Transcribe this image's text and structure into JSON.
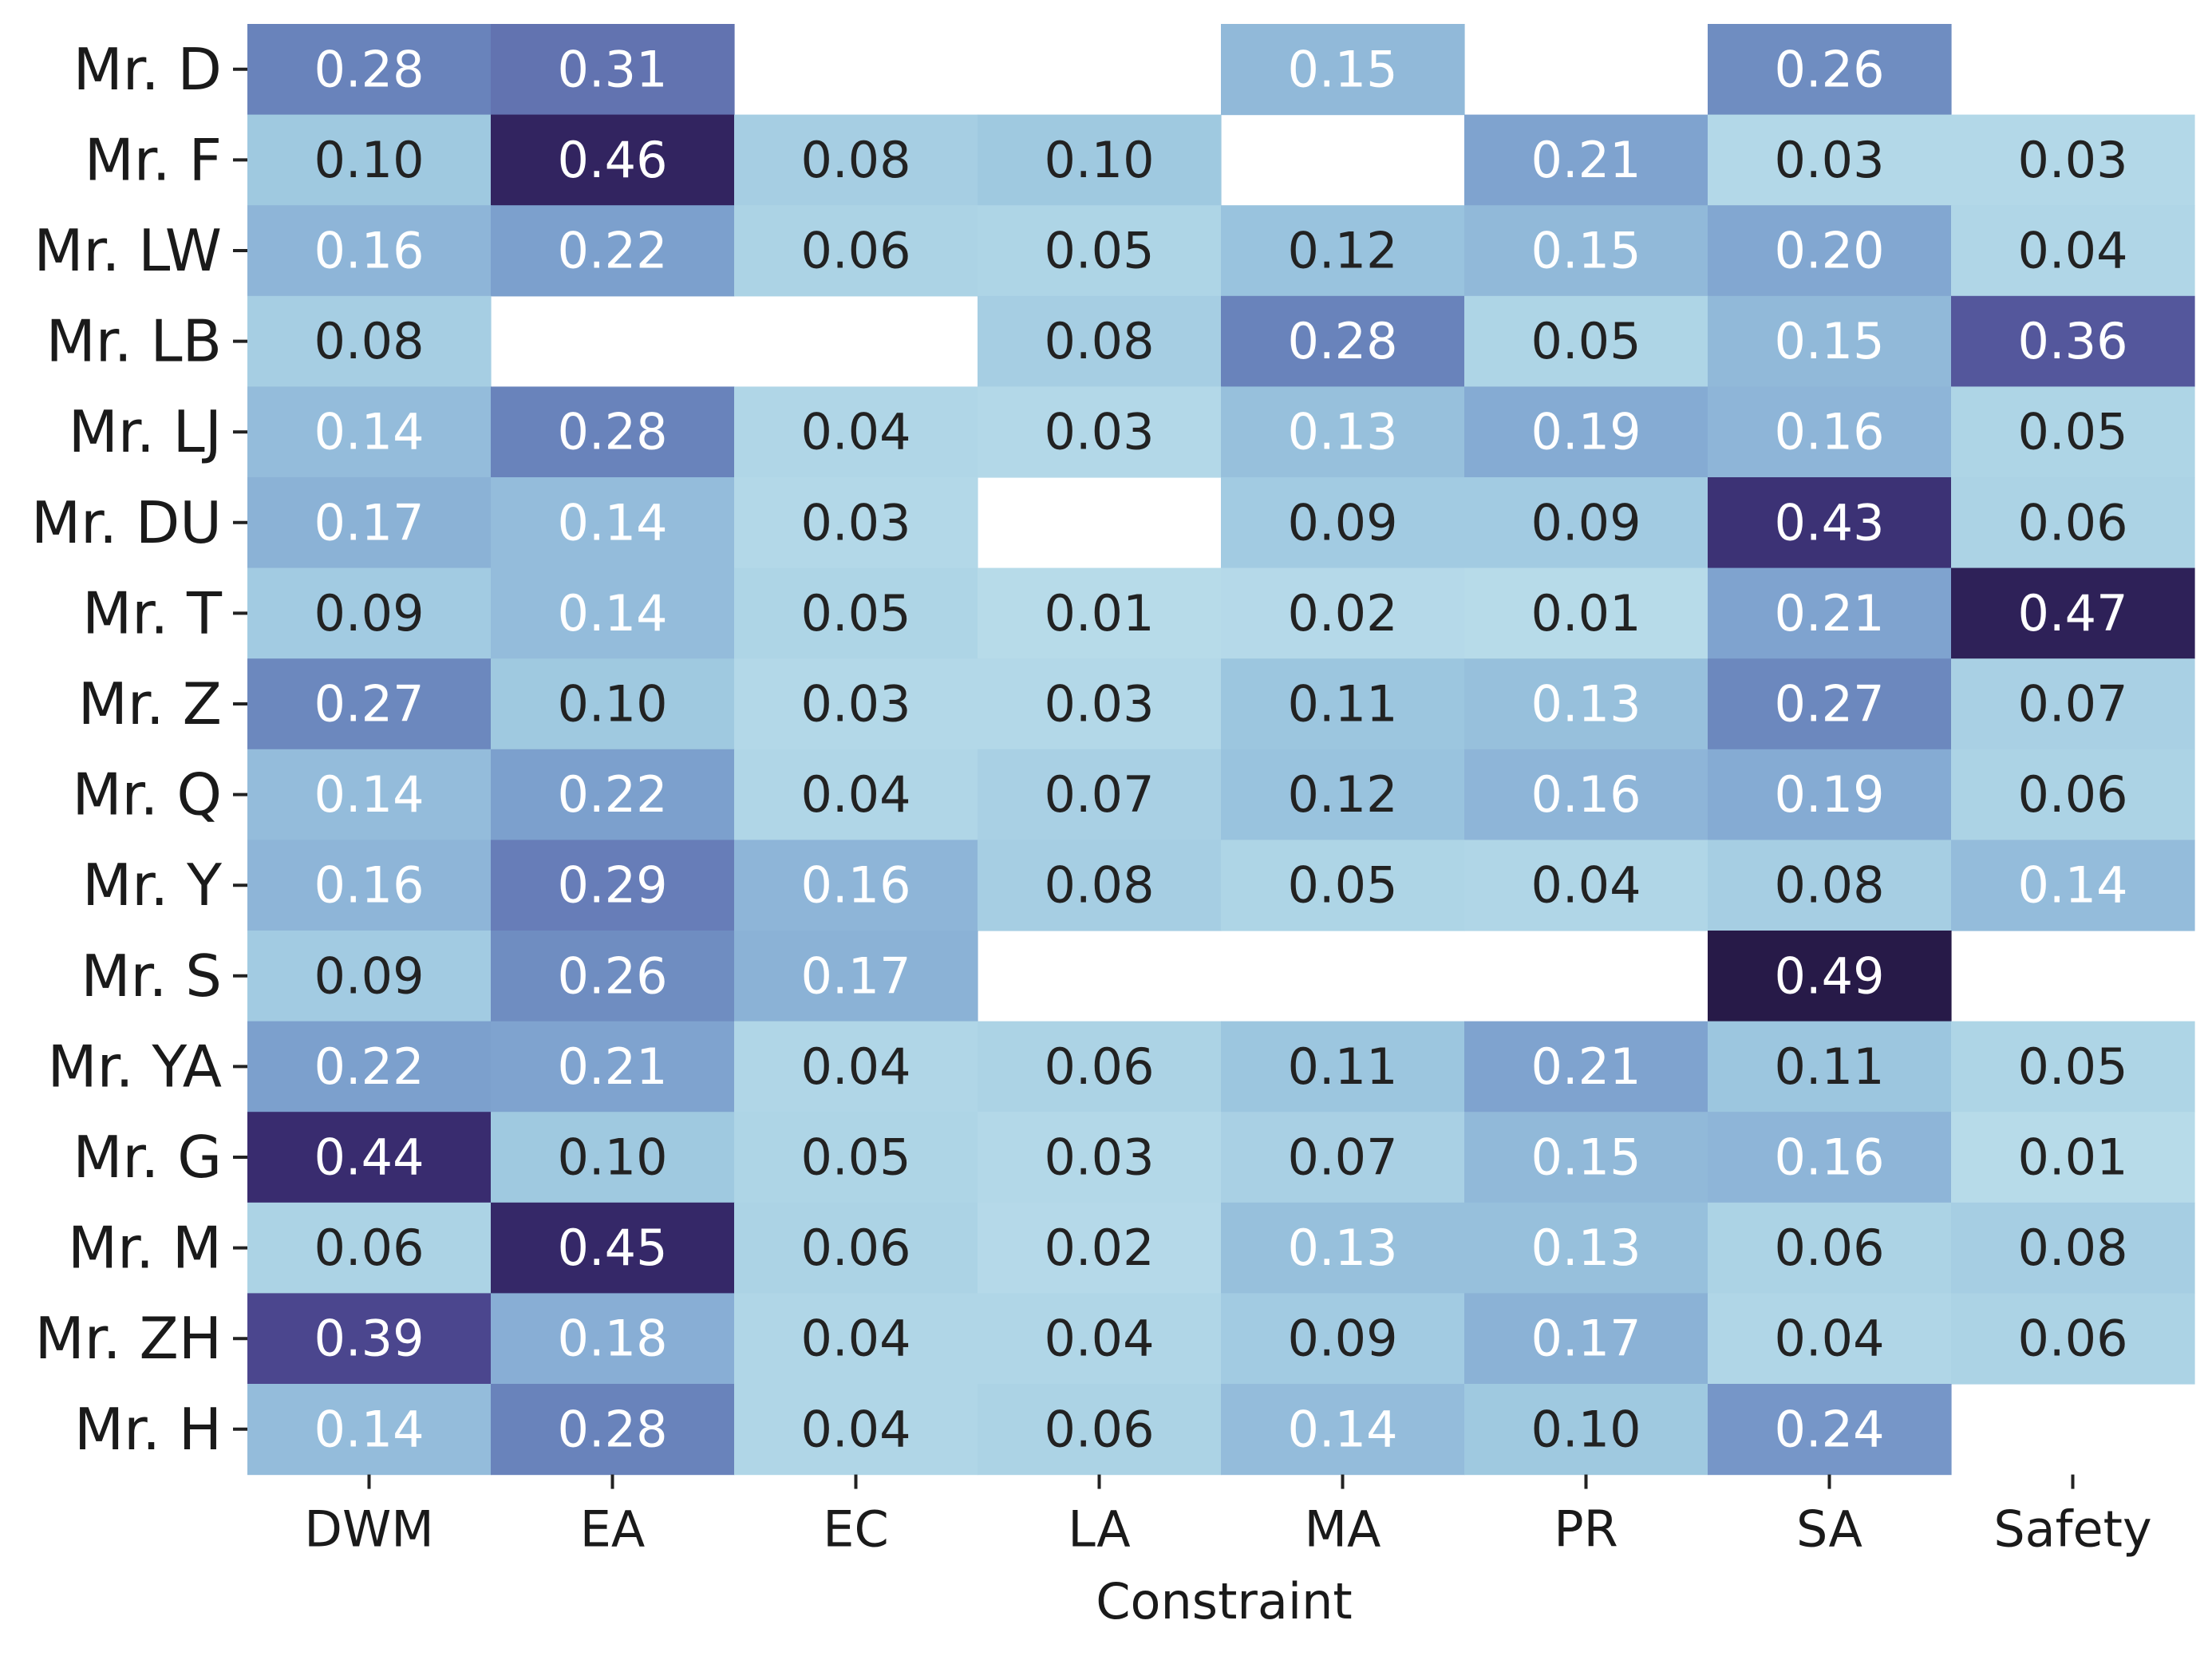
{
  "chart_data": {
    "type": "heatmap",
    "title": "",
    "xlabel": "Constraint",
    "ylabel": "",
    "columns": [
      "DWM",
      "EA",
      "EC",
      "LA",
      "MA",
      "PR",
      "SA",
      "Safety"
    ],
    "rows": [
      "Mr. D",
      "Mr. F",
      "Mr. LW",
      "Mr. LB",
      "Mr. LJ",
      "Mr. DU",
      "Mr. T",
      "Mr. Z",
      "Mr. Q",
      "Mr. Y",
      "Mr. S",
      "Mr. YA",
      "Mr. G",
      "Mr. M",
      "Mr. ZH",
      "Mr. H"
    ],
    "values": [
      [
        "0.28",
        "0.31",
        null,
        null,
        "0.15",
        null,
        "0.26",
        null
      ],
      [
        "0.10",
        "0.46",
        "0.08",
        "0.10",
        null,
        "0.21",
        "0.03",
        "0.03"
      ],
      [
        "0.16",
        "0.22",
        "0.06",
        "0.05",
        "0.12",
        "0.15",
        "0.20",
        "0.04"
      ],
      [
        "0.08",
        null,
        null,
        "0.08",
        "0.28",
        "0.05",
        "0.15",
        "0.36"
      ],
      [
        "0.14",
        "0.28",
        "0.04",
        "0.03",
        "0.13",
        "0.19",
        "0.16",
        "0.05"
      ],
      [
        "0.17",
        "0.14",
        "0.03",
        null,
        "0.09",
        "0.09",
        "0.43",
        "0.06"
      ],
      [
        "0.09",
        "0.14",
        "0.05",
        "0.01",
        "0.02",
        "0.01",
        "0.21",
        "0.47"
      ],
      [
        "0.27",
        "0.10",
        "0.03",
        "0.03",
        "0.11",
        "0.13",
        "0.27",
        "0.07"
      ],
      [
        "0.14",
        "0.22",
        "0.04",
        "0.07",
        "0.12",
        "0.16",
        "0.19",
        "0.06"
      ],
      [
        "0.16",
        "0.29",
        "0.16",
        "0.08",
        "0.05",
        "0.04",
        "0.08",
        "0.14"
      ],
      [
        "0.09",
        "0.26",
        "0.17",
        null,
        null,
        null,
        "0.49",
        null
      ],
      [
        "0.22",
        "0.21",
        "0.04",
        "0.06",
        "0.11",
        "0.21",
        "0.11",
        "0.05"
      ],
      [
        "0.44",
        "0.10",
        "0.05",
        "0.03",
        "0.07",
        "0.15",
        "0.16",
        "0.01"
      ],
      [
        "0.06",
        "0.45",
        "0.06",
        "0.02",
        "0.13",
        "0.13",
        "0.06",
        "0.08"
      ],
      [
        "0.39",
        "0.18",
        "0.04",
        "0.04",
        "0.09",
        "0.17",
        "0.04",
        "0.06"
      ],
      [
        "0.14",
        "0.28",
        "0.04",
        "0.06",
        "0.14",
        "0.10",
        "0.24",
        null
      ]
    ],
    "color_range": [
      0.0,
      0.5
    ],
    "colormap": [
      "#b9dcea",
      "#add4e6",
      "#9cc6df",
      "#8cb3d7",
      "#7b9fcd",
      "#6a84bc",
      "#5c66a8",
      "#4b478f",
      "#372a6c",
      "#241640"
    ],
    "text_colors": {
      "light": "#ffffff",
      "dark": "#222222"
    },
    "text_threshold": 0.13,
    "legend": "none",
    "grid": false
  }
}
